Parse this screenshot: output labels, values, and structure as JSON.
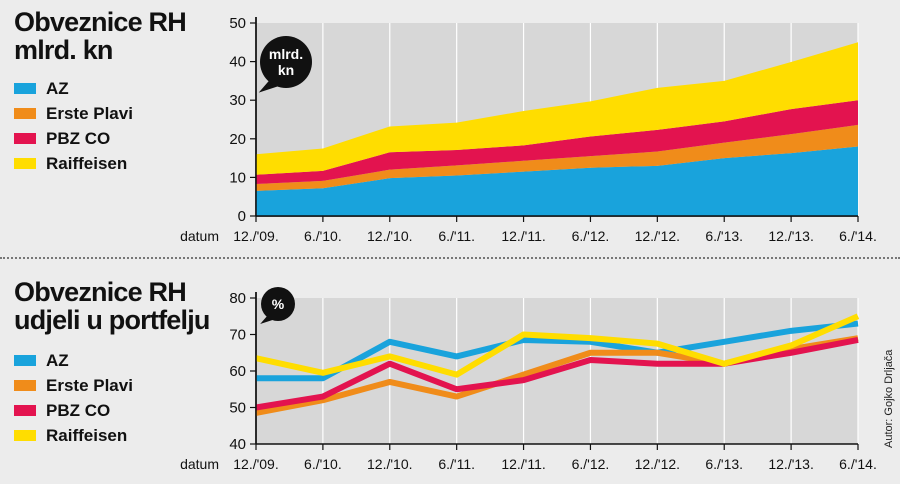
{
  "colors": {
    "az": "#19a3dc",
    "erste": "#f08c1a",
    "pbz": "#e3134f",
    "raiffeisen": "#ffdd00",
    "bubble": "#111111",
    "background": "#ececec"
  },
  "chart_data": [
    {
      "type": "area",
      "stacked": true,
      "title_lines": [
        "Obveznice RH",
        "mlrd. kn"
      ],
      "bubble_label_lines": [
        "mlrd.",
        "kn"
      ],
      "xlabel": "datum",
      "categories": [
        "12./'09.",
        "6./'10.",
        "12./'10.",
        "6./'11.",
        "12./'11.",
        "6./'12.",
        "12./'12.",
        "6./'13.",
        "12./'13.",
        "6./'14."
      ],
      "ylim": [
        0,
        50
      ],
      "yticks": [
        0,
        10,
        20,
        30,
        40,
        50
      ],
      "grid": "vertical",
      "legend": "left",
      "series": [
        {
          "name": "AZ",
          "key": "az",
          "values": [
            6.5,
            7.2,
            9.8,
            10.5,
            11.5,
            12.5,
            13.0,
            15.0,
            16.3,
            18.0
          ]
        },
        {
          "name": "Erste Plavi",
          "key": "erste",
          "values": [
            1.8,
            1.9,
            2.2,
            2.6,
            2.8,
            3.0,
            3.7,
            4.0,
            4.9,
            5.6
          ]
        },
        {
          "name": "PBZ CO",
          "key": "pbz",
          "values": [
            2.4,
            2.6,
            4.5,
            4.0,
            4.0,
            5.1,
            5.6,
            5.5,
            6.5,
            6.4
          ]
        },
        {
          "name": "Raiffeisen",
          "key": "raiffeisen",
          "values": [
            5.3,
            5.8,
            6.7,
            7.1,
            8.9,
            9.1,
            10.9,
            10.5,
            12.2,
            15.0
          ]
        }
      ]
    },
    {
      "type": "line",
      "title_lines": [
        "Obveznice RH",
        "udjeli u portfelju"
      ],
      "bubble_label_lines": [
        "%"
      ],
      "xlabel": "datum",
      "categories": [
        "12./'09.",
        "6./'10.",
        "12./'10.",
        "6./'11.",
        "12./'11.",
        "6./'12.",
        "12./'12.",
        "6./'13.",
        "12./'13.",
        "6./'14."
      ],
      "ylim": [
        40,
        80
      ],
      "yticks": [
        40,
        50,
        60,
        70,
        80
      ],
      "grid": "vertical",
      "legend": "left",
      "series": [
        {
          "name": "AZ",
          "key": "az",
          "values": [
            58,
            58,
            68,
            64,
            68.5,
            68,
            65,
            68,
            71,
            73
          ]
        },
        {
          "name": "Erste Plavi",
          "key": "erste",
          "values": [
            48.5,
            52,
            57,
            53,
            59,
            65,
            65,
            62,
            66,
            69
          ]
        },
        {
          "name": "PBZ CO",
          "key": "pbz",
          "values": [
            50,
            53,
            62,
            55,
            57.5,
            63,
            62,
            62,
            65,
            68.5
          ]
        },
        {
          "name": "Raiffeisen",
          "key": "raiffeisen",
          "values": [
            63.5,
            59.5,
            64,
            59,
            70,
            69,
            67.5,
            62,
            67,
            75
          ]
        }
      ]
    }
  ],
  "credit": "Autor: Gojko Drljača"
}
